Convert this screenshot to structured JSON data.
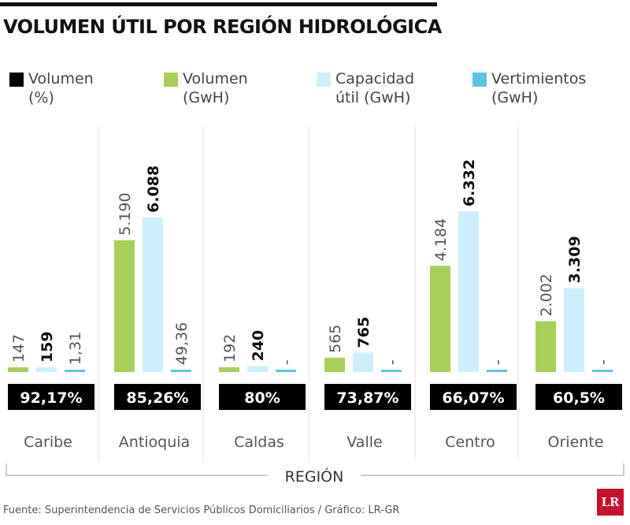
{
  "chart_data": {
    "type": "bar",
    "title": "VOLUMEN ÚTIL POR REGIÓN HIDROLÓGICA",
    "xlabel": "REGIÓN",
    "categories": [
      "Caribe",
      "Antioquia",
      "Caldas",
      "Valle",
      "Centro",
      "Oriente"
    ],
    "series": [
      {
        "name": "Volumen (GwH)",
        "color": "#a8cf5a",
        "values": [
          147,
          5190,
          192,
          565,
          4184,
          2002
        ],
        "labels": [
          "147",
          "5.190",
          "192",
          "565",
          "4.184",
          "2.002"
        ]
      },
      {
        "name": "Capacidad útil (GwH)",
        "color": "#cdeefa",
        "values": [
          159,
          6088,
          240,
          765,
          6332,
          3309
        ],
        "labels": [
          "159",
          "6.088",
          "240",
          "765",
          "6.332",
          "3.309"
        ]
      },
      {
        "name": "Vertimientos (GwH)",
        "color": "#5bc4e4",
        "values": [
          1.31,
          49.36,
          null,
          null,
          null,
          null
        ],
        "labels": [
          "1,31",
          "49,36",
          "-",
          "-",
          "-",
          "-"
        ]
      }
    ],
    "percent": {
      "name": "Volumen (%)",
      "color": "#000000",
      "labels": [
        "92,17%",
        "85,26%",
        "80%",
        "73,87%",
        "66,07%",
        "60,5%"
      ]
    },
    "legend_position": "top",
    "grid": false
  },
  "legend": [
    {
      "label": "Volumen\n(%)",
      "color": "#000000"
    },
    {
      "label": "Volumen\n(GwH)",
      "color": "#a8cf5a"
    },
    {
      "label": "Capacidad\nútil (GwH)",
      "color": "#cdeefa"
    },
    {
      "label": "Vertimientos\n(GwH)",
      "color": "#5bc4e4"
    }
  ],
  "source": "Fuente: Superintendencia de Servicios Públicos Domiciliarios / Gráfico: LR-GR",
  "logo": "LR"
}
